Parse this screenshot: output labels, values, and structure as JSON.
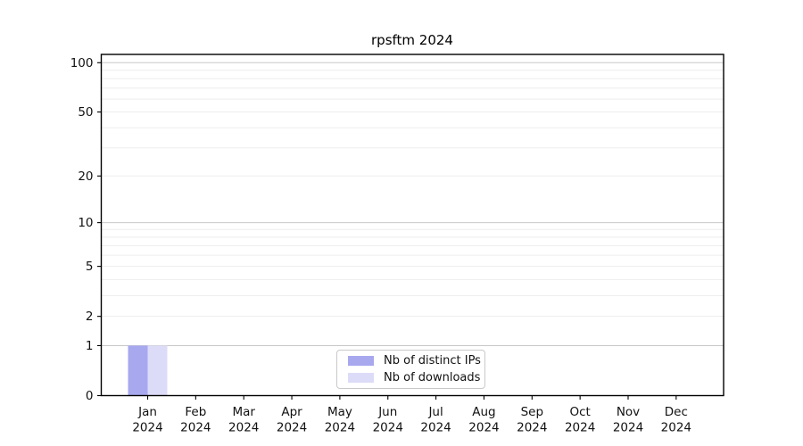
{
  "page": {
    "background": "#ffffff"
  },
  "chart_data": {
    "type": "bar",
    "title": "rpsftm 2024",
    "year": "2024",
    "categories": [
      "Jan",
      "Feb",
      "Mar",
      "Apr",
      "May",
      "Jun",
      "Jul",
      "Aug",
      "Sep",
      "Oct",
      "Nov",
      "Dec"
    ],
    "series": [
      {
        "name": "Nb of distinct IPs",
        "color": "#a8a8ef",
        "values": [
          1,
          0,
          0,
          0,
          0,
          0,
          0,
          0,
          0,
          0,
          0,
          0
        ]
      },
      {
        "name": "Nb of downloads",
        "color": "#dcdcf8",
        "values": [
          1,
          0,
          0,
          0,
          0,
          0,
          0,
          0,
          0,
          0,
          0,
          0
        ]
      }
    ],
    "yscale": "log10(1+y)",
    "yticks": [
      0,
      1,
      2,
      5,
      10,
      20,
      50,
      100
    ],
    "ylim": [
      0,
      112
    ],
    "gridlines": {
      "major": [
        1,
        10,
        100
      ],
      "minor": [
        2,
        3,
        4,
        5,
        6,
        7,
        8,
        9,
        20,
        30,
        40,
        50,
        60,
        70,
        80,
        90
      ]
    },
    "colors": {
      "grid_major": "#c8c8c8",
      "grid_minor": "#ededed",
      "axis": "#000000",
      "background": "#ffffff"
    },
    "legend": {
      "position": "lower center",
      "border_color": "#c9c9c9"
    }
  }
}
